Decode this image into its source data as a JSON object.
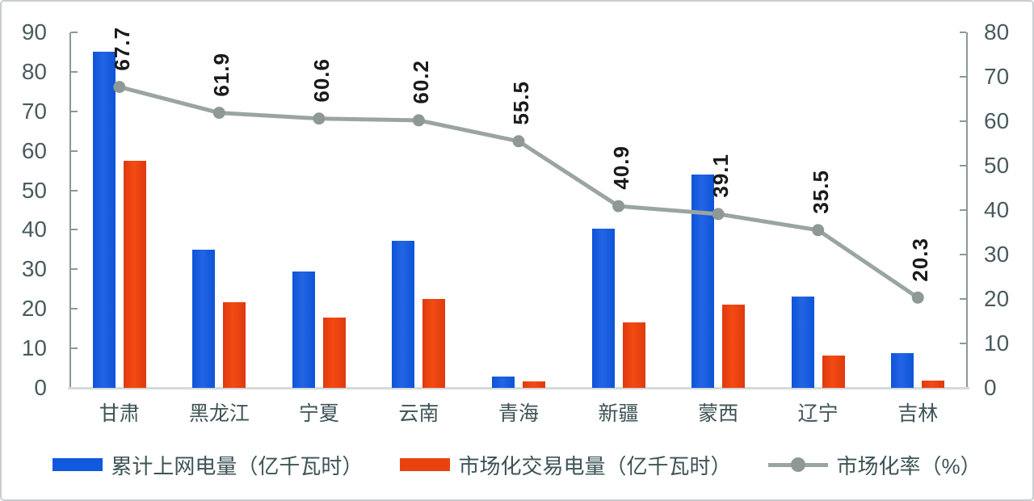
{
  "colors": {
    "bar_cumulative": "#1159de",
    "bar_market": "#e8420f",
    "line_marketization": "#9aa5a0",
    "line_marker": "#8e9995",
    "axis_text": "#4a5b5e",
    "category_text": "#3e5356",
    "value_label_text": "#1a1a1a",
    "axis_line": "#8a999b",
    "baseline": "#d5dad8"
  },
  "chart_data": {
    "type": "bar+line combo, dual axis",
    "title": "",
    "categories": [
      "甘肃",
      "黑龙江",
      "宁夏",
      "云南",
      "青海",
      "新疆",
      "蒙西",
      "辽宁",
      "吉林"
    ],
    "series": [
      {
        "name": "累计上网电量（亿千瓦时）",
        "type": "bar",
        "axis": "left",
        "color": "#1159de",
        "values": [
          85,
          35,
          29.5,
          37.3,
          2.8,
          40.3,
          54,
          23.2,
          8.8
        ]
      },
      {
        "name": "市场化交易电量（亿千瓦时）",
        "type": "bar",
        "axis": "left",
        "color": "#e8420f",
        "values": [
          57.5,
          21.7,
          17.9,
          22.5,
          1.55,
          16.5,
          21.1,
          8.2,
          1.8
        ]
      },
      {
        "name": "市场化率（%）",
        "type": "line",
        "axis": "right",
        "color": "#9aa5a0",
        "values": [
          67.7,
          61.9,
          60.6,
          60.2,
          55.5,
          40.9,
          39.1,
          35.5,
          20.3
        ],
        "labels": [
          "67.7",
          "61.9",
          "60.6",
          "60.2",
          "55.5",
          "40.9",
          "39.1",
          "35.5",
          "20.3"
        ]
      }
    ],
    "left_axis": {
      "min": 0,
      "max": 90,
      "step": 10,
      "tick_labels": [
        "0",
        "10",
        "20",
        "30",
        "40",
        "50",
        "60",
        "70",
        "80",
        "90"
      ]
    },
    "right_axis": {
      "min": 0,
      "max": 80,
      "step": 10,
      "tick_labels": [
        "0",
        "10",
        "20",
        "30",
        "40",
        "50",
        "60",
        "70",
        "80"
      ]
    },
    "grid": false,
    "legend_position": "bottom"
  },
  "legend": {
    "items": [
      {
        "label": "累计上网电量（亿千瓦时）",
        "swatch": "blue-bar"
      },
      {
        "label": "市场化交易电量（亿千瓦时）",
        "swatch": "orange-bar"
      },
      {
        "label": "市场化率（%）",
        "swatch": "gray-line-dot"
      }
    ]
  }
}
